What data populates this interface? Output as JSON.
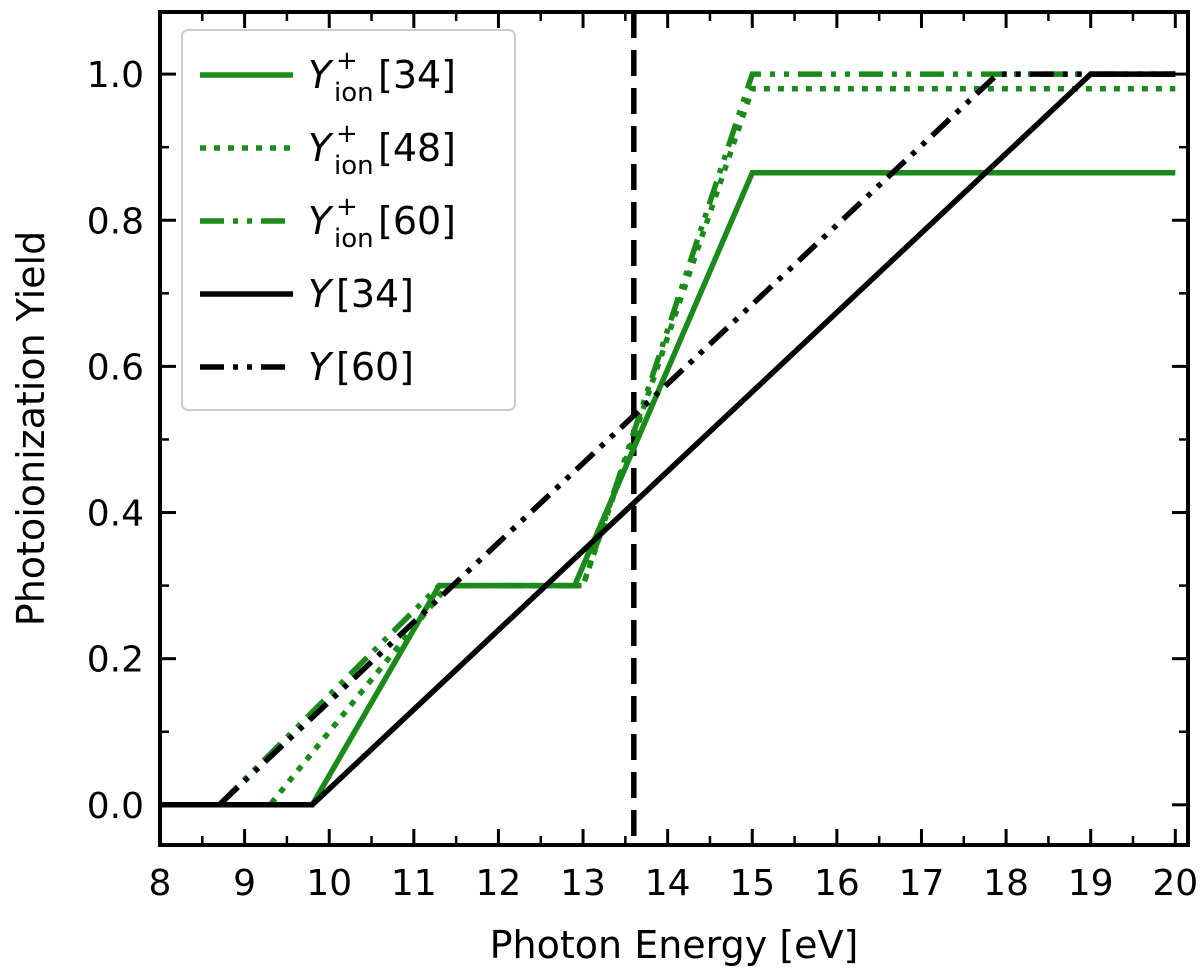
{
  "chart_data": {
    "type": "line",
    "xlabel": "Photon Energy [eV]",
    "ylabel": "Photoionization Yield",
    "xlim": [
      8,
      20.15
    ],
    "ylim": [
      -0.055,
      1.085
    ],
    "xticks": [
      8,
      9,
      10,
      11,
      12,
      13,
      14,
      15,
      16,
      17,
      18,
      19,
      20
    ],
    "yticks": [
      0.0,
      0.2,
      0.4,
      0.6,
      0.8,
      1.0
    ],
    "ytick_labels": [
      "0.0",
      "0.2",
      "0.4",
      "0.6",
      "0.8",
      "1.0"
    ],
    "grid": false,
    "legend_position": "top-left",
    "vline": {
      "x": 13.6,
      "style": "dashed",
      "color": "#000000"
    },
    "series": [
      {
        "name": "Y",
        "name_sup": "+",
        "name_sub": "ion",
        "name_suffix": "[34]",
        "color": "#1a8a1a",
        "style": "solid",
        "points": [
          [
            8,
            0
          ],
          [
            9.8,
            0
          ],
          [
            11.3,
            0.3
          ],
          [
            12.9,
            0.3
          ],
          [
            15,
            0.865
          ],
          [
            20,
            0.865
          ]
        ]
      },
      {
        "name": "Y",
        "name_sup": "+",
        "name_sub": "ion",
        "name_suffix": "[48]",
        "color": "#1a8a1a",
        "style": "dotted",
        "points": [
          [
            8,
            0
          ],
          [
            9.3,
            0
          ],
          [
            11.4,
            0.3
          ],
          [
            13,
            0.3
          ],
          [
            15,
            0.98
          ],
          [
            20,
            0.98
          ]
        ]
      },
      {
        "name": "Y",
        "name_sup": "+",
        "name_sub": "ion",
        "name_suffix": "[60]",
        "color": "#1a8a1a",
        "style": "dashdotdot",
        "points": [
          [
            8,
            0
          ],
          [
            8.7,
            0
          ],
          [
            11.3,
            0.3
          ],
          [
            13,
            0.3
          ],
          [
            15,
            1.0
          ],
          [
            20,
            1.0
          ]
        ]
      },
      {
        "name": "Y",
        "name_suffix": "[34]",
        "color": "#000000",
        "style": "solid",
        "points": [
          [
            8,
            0
          ],
          [
            9.8,
            0
          ],
          [
            19,
            1.0
          ],
          [
            20,
            1.0
          ]
        ]
      },
      {
        "name": "Y",
        "name_suffix": "[60]",
        "color": "#000000",
        "style": "dashdotdot",
        "points": [
          [
            8,
            0
          ],
          [
            8.7,
            0
          ],
          [
            17.9,
            1.0
          ],
          [
            20,
            1.0
          ]
        ]
      }
    ]
  }
}
